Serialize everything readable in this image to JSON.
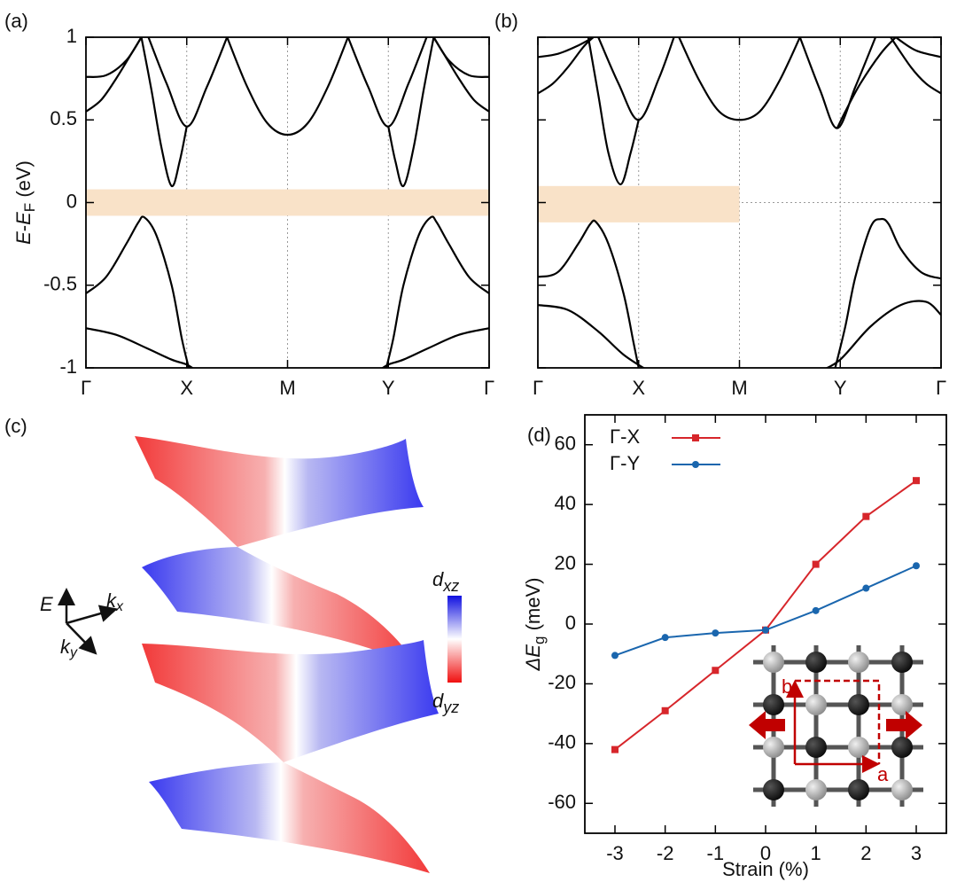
{
  "chart_data": [
    {
      "type": "line",
      "label": "(a)",
      "color": "#000000",
      "smooth": true,
      "ylabel": [
        {
          "text": "E",
          "italic": true
        },
        {
          "text": "-"
        },
        {
          "text": "E",
          "italic": true
        },
        {
          "text": "F",
          "sub": true
        },
        {
          "text": " (eV)"
        }
      ],
      "xlim": [
        0,
        4
      ],
      "ylim": [
        -1,
        1
      ],
      "xticks": [
        {
          "value": 0,
          "label": "Γ"
        },
        {
          "value": 1,
          "label": "X"
        },
        {
          "value": 2,
          "label": "M"
        },
        {
          "value": 3,
          "label": "Y"
        },
        {
          "value": 4,
          "label": "Γ"
        }
      ],
      "yticks": [
        1,
        0.5,
        0,
        -0.5,
        -1
      ],
      "grid": "x",
      "reference_line": 0,
      "highlight": {
        "xlim": [
          0,
          4
        ],
        "ylim": [
          -0.08,
          0.08
        ],
        "color": "#f9e2c8"
      },
      "series": [
        {
          "x": [
            0,
            0.15,
            0.3,
            0.45,
            0.55
          ],
          "values": [
            0.55,
            0.62,
            0.75,
            0.9,
            1.0
          ]
        },
        {
          "x": [
            0,
            0.2,
            0.4,
            0.55
          ],
          "values": [
            0.76,
            0.77,
            0.86,
            1.0
          ]
        },
        {
          "x": [
            0.55,
            0.65,
            0.75,
            0.85,
            0.93,
            1.0
          ],
          "values": [
            1.0,
            0.68,
            0.33,
            0.1,
            0.25,
            0.46
          ]
        },
        {
          "x": [
            0.62,
            0.8,
            1.0,
            1.2,
            1.4
          ],
          "values": [
            1.0,
            0.72,
            0.46,
            0.7,
            1.0
          ]
        },
        {
          "x": [
            1.4,
            1.6,
            1.8,
            2.0,
            2.2,
            2.4,
            2.6
          ],
          "values": [
            1.0,
            0.7,
            0.48,
            0.41,
            0.48,
            0.7,
            1.0
          ]
        },
        {
          "x": [
            2.6,
            2.8,
            3.0,
            3.2,
            3.38
          ],
          "values": [
            1.0,
            0.7,
            0.46,
            0.72,
            1.0
          ]
        },
        {
          "x": [
            3.0,
            3.07,
            3.15,
            3.25,
            3.35,
            3.45
          ],
          "values": [
            0.46,
            0.25,
            0.1,
            0.33,
            0.68,
            1.0
          ]
        },
        {
          "x": [
            3.45,
            3.55,
            3.7,
            3.85,
            4
          ],
          "values": [
            1.0,
            0.9,
            0.75,
            0.62,
            0.55
          ]
        },
        {
          "x": [
            3.45,
            3.6,
            3.8,
            4
          ],
          "values": [
            1.0,
            0.86,
            0.77,
            0.76
          ]
        },
        {
          "x": [
            0,
            0.2,
            0.4,
            0.52,
            0.58,
            0.7,
            0.85,
            0.95,
            1.02
          ],
          "values": [
            -0.55,
            -0.45,
            -0.25,
            -0.12,
            -0.09,
            -0.2,
            -0.5,
            -0.82,
            -1.0
          ]
        },
        {
          "x": [
            2.98,
            3.05,
            3.15,
            3.3,
            3.42,
            3.48,
            3.6,
            3.8,
            4
          ],
          "values": [
            -1.0,
            -0.82,
            -0.5,
            -0.2,
            -0.09,
            -0.12,
            -0.25,
            -0.45,
            -0.55
          ]
        },
        {
          "x": [
            0,
            0.3,
            0.6,
            0.85,
            1.0,
            1.1
          ],
          "values": [
            -0.76,
            -0.8,
            -0.88,
            -0.95,
            -0.98,
            -1.02
          ]
        },
        {
          "x": [
            2.9,
            3.0,
            3.15,
            3.4,
            3.7,
            4
          ],
          "values": [
            -1.02,
            -0.98,
            -0.95,
            -0.88,
            -0.8,
            -0.76
          ]
        }
      ]
    },
    {
      "type": "line",
      "label": "(b)",
      "color": "#000000",
      "smooth": true,
      "show_ytick_labels": false,
      "xlim": [
        0,
        4
      ],
      "ylim": [
        -1,
        1
      ],
      "xticks": [
        {
          "value": 0,
          "label": "Γ"
        },
        {
          "value": 1,
          "label": "X"
        },
        {
          "value": 2,
          "label": "M"
        },
        {
          "value": 3,
          "label": "Y"
        },
        {
          "value": 4,
          "label": "Γ"
        }
      ],
      "yticks": [
        1,
        0.5,
        0,
        -0.5,
        -1
      ],
      "grid": "x",
      "reference_line": 0,
      "highlight": {
        "xlim": [
          0,
          2
        ],
        "ylim": [
          -0.12,
          0.1
        ],
        "color": "#f9e2c8"
      },
      "series": [
        {
          "x": [
            0,
            0.15,
            0.3,
            0.45,
            0.55
          ],
          "values": [
            0.66,
            0.72,
            0.82,
            0.94,
            1.0
          ]
        },
        {
          "x": [
            0,
            0.2,
            0.4,
            0.55
          ],
          "values": [
            0.88,
            0.9,
            0.95,
            1.0
          ]
        },
        {
          "x": [
            0.5,
            0.6,
            0.7,
            0.82,
            0.92,
            1.0
          ],
          "values": [
            1.0,
            0.65,
            0.3,
            0.11,
            0.3,
            0.5
          ]
        },
        {
          "x": [
            0.6,
            0.8,
            1.0,
            1.2,
            1.35
          ],
          "values": [
            1.0,
            0.72,
            0.5,
            0.75,
            1.0
          ]
        },
        {
          "x": [
            1.4,
            1.6,
            1.8,
            2.0,
            2.2,
            2.4,
            2.6
          ],
          "values": [
            1.0,
            0.74,
            0.55,
            0.5,
            0.55,
            0.74,
            1.0
          ]
        },
        {
          "x": [
            2.6,
            2.8,
            2.97,
            3.15,
            3.35
          ],
          "values": [
            1.0,
            0.68,
            0.45,
            0.7,
            1.0
          ]
        },
        {
          "x": [
            2.97,
            3.05,
            3.2,
            3.4,
            3.55
          ],
          "values": [
            0.45,
            0.55,
            0.72,
            0.9,
            1.0
          ]
        },
        {
          "x": [
            3.5,
            3.7,
            3.85,
            4
          ],
          "values": [
            1.0,
            0.82,
            0.72,
            0.66
          ]
        },
        {
          "x": [
            3.55,
            3.75,
            4
          ],
          "values": [
            1.0,
            0.92,
            0.88
          ]
        },
        {
          "x": [
            0,
            0.2,
            0.4,
            0.52,
            0.58,
            0.7,
            0.85,
            0.95,
            1.0
          ],
          "values": [
            -0.45,
            -0.42,
            -0.25,
            -0.13,
            -0.12,
            -0.25,
            -0.55,
            -0.85,
            -1.0
          ]
        },
        {
          "x": [
            2.95,
            3.05,
            3.15,
            3.3,
            3.4,
            3.48,
            3.6,
            3.8,
            4
          ],
          "values": [
            -1.0,
            -0.75,
            -0.45,
            -0.15,
            -0.1,
            -0.13,
            -0.28,
            -0.42,
            -0.46
          ]
        },
        {
          "x": [
            0,
            0.3,
            0.6,
            0.85,
            1.1
          ],
          "values": [
            -0.62,
            -0.65,
            -0.78,
            -0.92,
            -1.02
          ]
        },
        {
          "x": [
            2.8,
            3.0,
            3.3,
            3.6,
            3.85,
            4
          ],
          "values": [
            -1.02,
            -0.95,
            -0.75,
            -0.62,
            -0.6,
            -0.68
          ]
        }
      ]
    },
    {
      "type": "line",
      "label": "(d)",
      "smooth": false,
      "xlabel": "Strain (%)",
      "ylabel": [
        {
          "text": "ΔE",
          "italic": true
        },
        {
          "text": "g",
          "sub": true
        },
        {
          "text": " (meV)"
        }
      ],
      "xlim": [
        -3.6,
        3.6
      ],
      "ylim": [
        -70,
        70
      ],
      "xticks": [
        -3,
        -2,
        -1,
        0,
        1,
        2,
        3
      ],
      "yticks": [
        60,
        40,
        20,
        0,
        -20,
        -40,
        -60
      ],
      "legend": "upper left",
      "series": [
        {
          "name": "Γ-X",
          "color": "#d7262b",
          "marker": "square",
          "x": [
            -3,
            -2,
            -1,
            0,
            1,
            2,
            3
          ],
          "values": [
            -42,
            -29,
            -15.5,
            -2,
            20,
            36,
            48
          ]
        },
        {
          "name": "Γ-Y",
          "color": "#1a66ae",
          "marker": "circle",
          "x": [
            -3,
            -2,
            -1,
            0,
            1,
            2,
            3
          ],
          "values": [
            -10.5,
            -4.5,
            -3,
            -2,
            4.5,
            12,
            19.5
          ]
        }
      ],
      "inset_labels": [
        "b",
        "a"
      ]
    }
  ],
  "panel_c": {
    "label": "(c)",
    "axes": [
      {
        "text": "E"
      },
      {
        "text": "k",
        "sub": "x"
      },
      {
        "text": "k",
        "sub": "y"
      }
    ],
    "colorbar": [
      {
        "text": "d",
        "sub": "xz"
      },
      {
        "text": "d",
        "sub": "yz"
      }
    ]
  }
}
